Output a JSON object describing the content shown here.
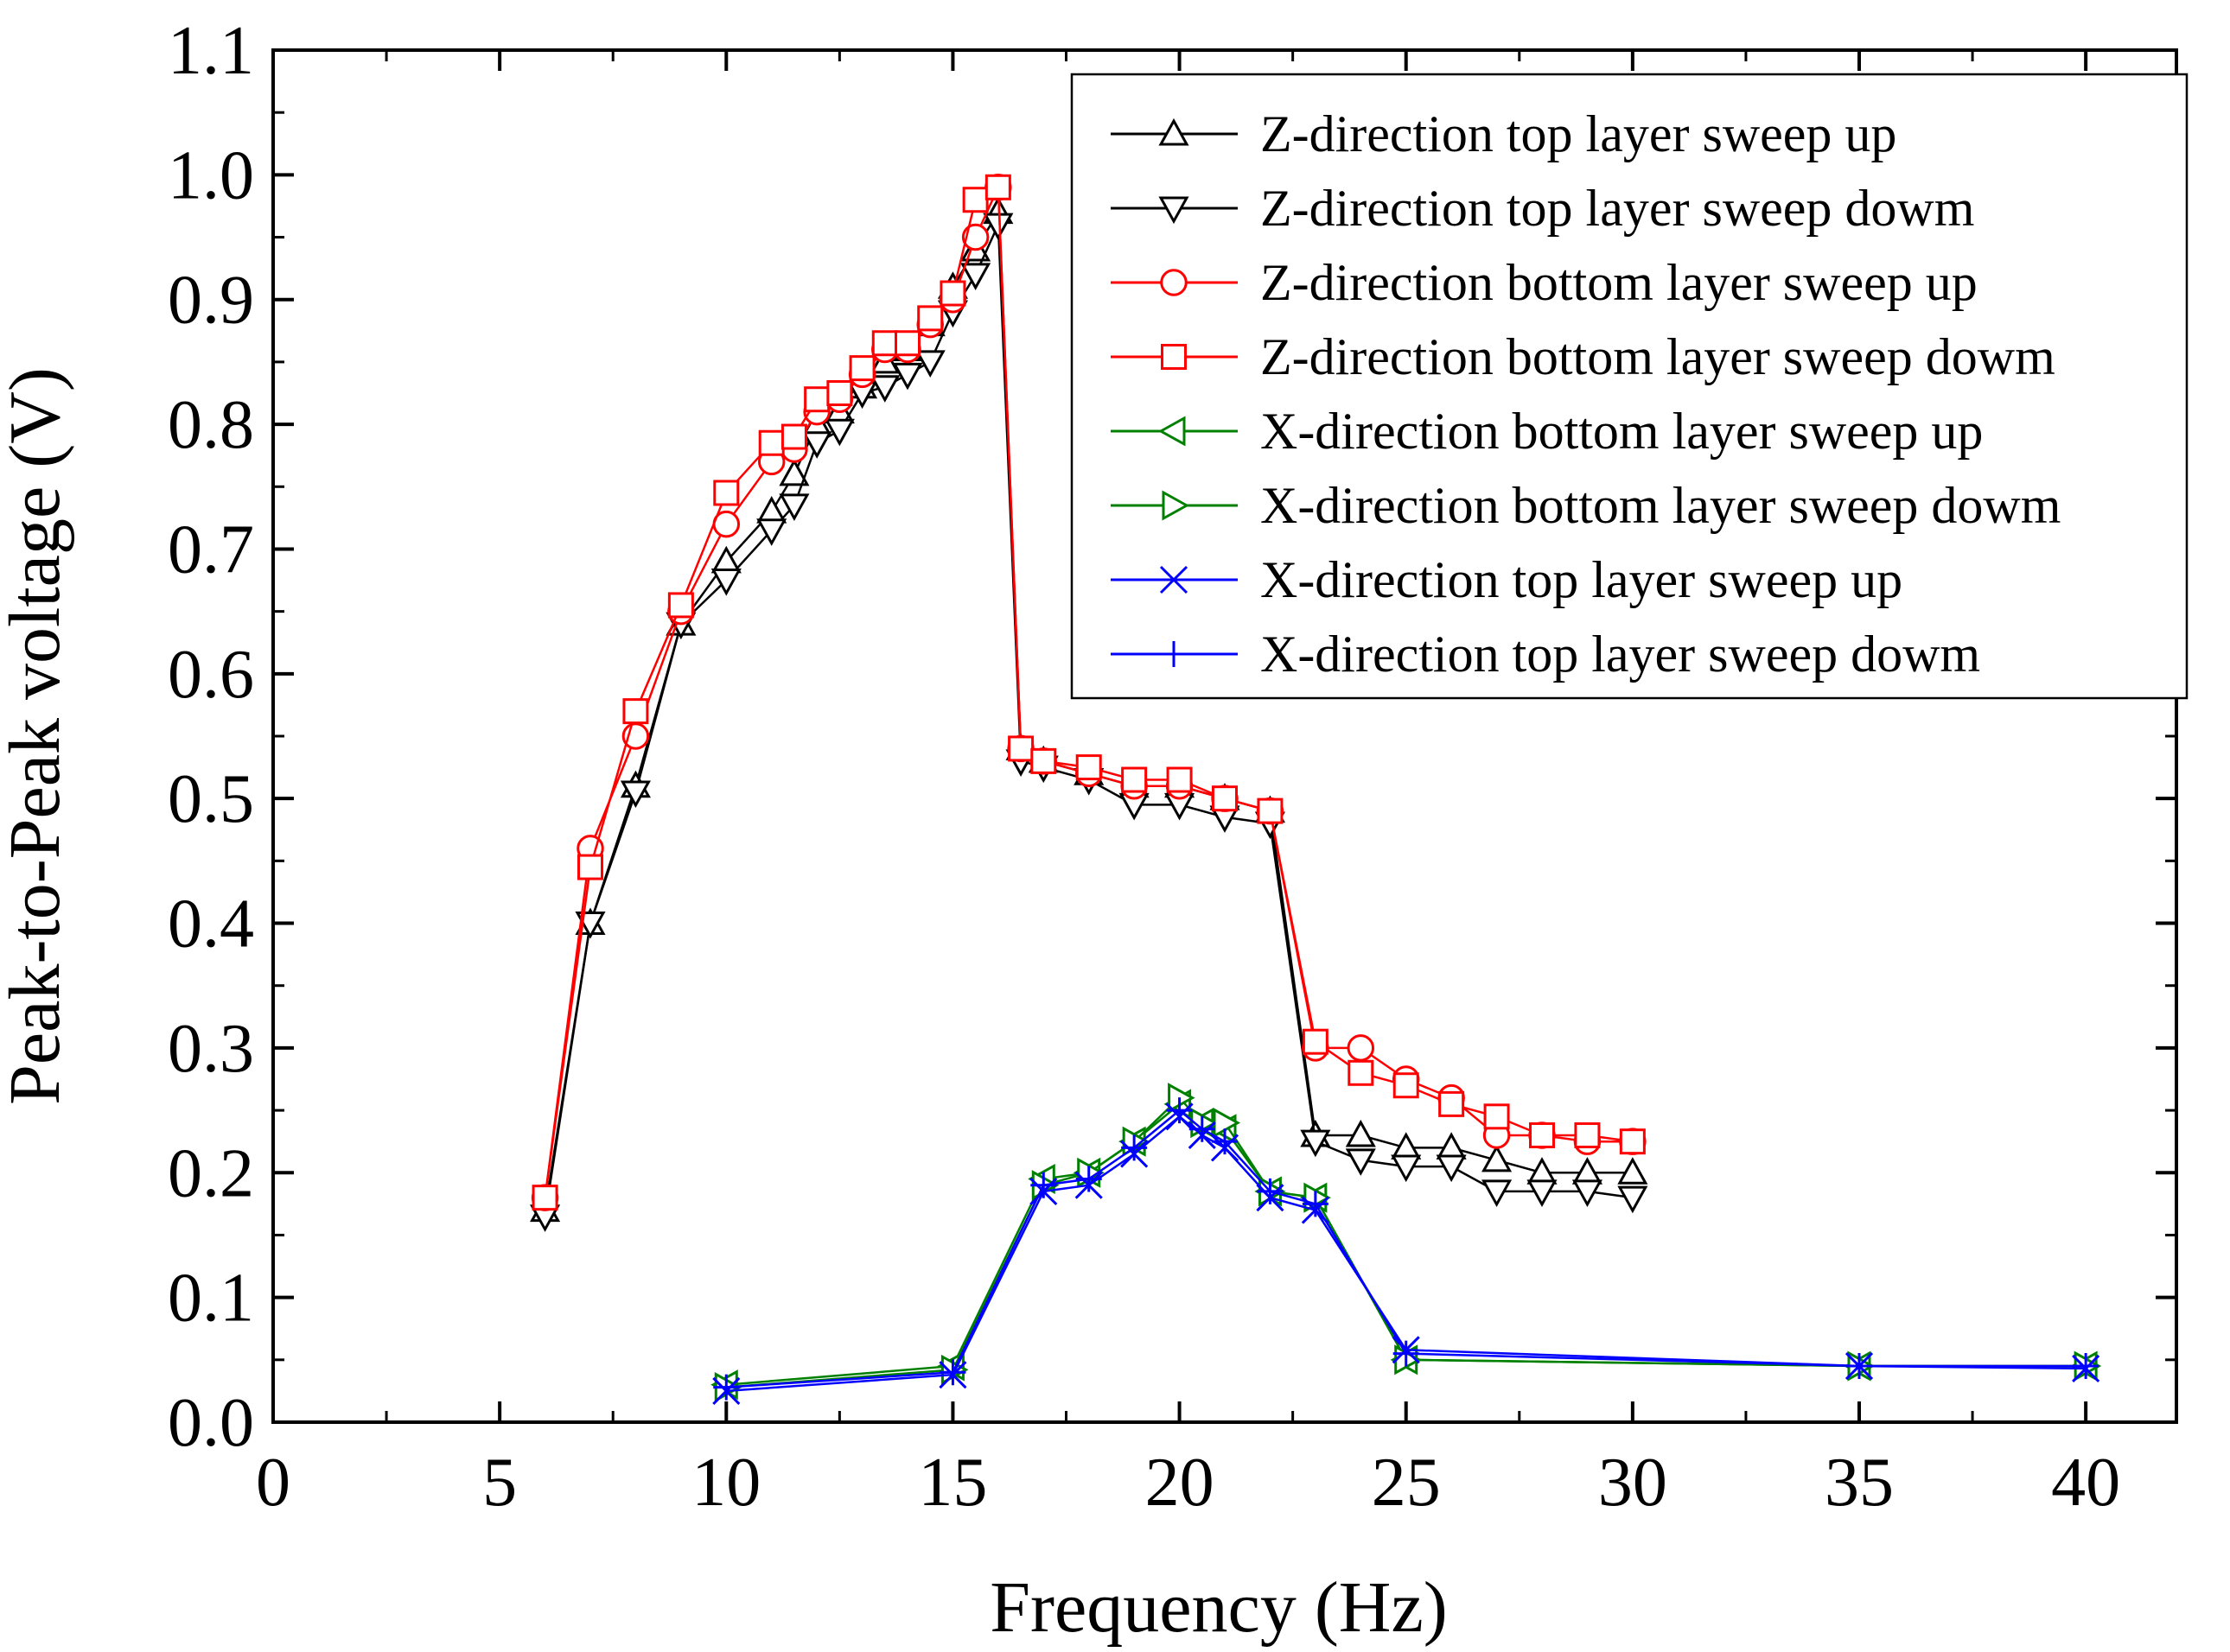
{
  "chart_data": {
    "type": "line",
    "xlabel": "Frequency (Hz)",
    "ylabel": "Peak-to-Peak voltage (V)",
    "xlim": [
      0,
      42
    ],
    "ylim": [
      0,
      1.1
    ],
    "xticks": [
      0,
      5,
      10,
      15,
      20,
      25,
      30,
      35,
      40
    ],
    "xtick_labels": [
      "0",
      "5",
      "10",
      "15",
      "20",
      "25",
      "30",
      "35",
      "40"
    ],
    "yticks": [
      0.0,
      0.1,
      0.2,
      0.3,
      0.4,
      0.5,
      0.6,
      0.7,
      0.8,
      0.9,
      1.0,
      1.1
    ],
    "ytick_labels": [
      "0.0",
      "0.1",
      "0.2",
      "0.3",
      "0.4",
      "0.5",
      "0.6",
      "0.7",
      "0.8",
      "0.9",
      "1.0",
      "1.1"
    ],
    "grid": false,
    "legend_position": "top-right",
    "series": [
      {
        "name": "Z-direction top layer sweep up",
        "color": "#000000",
        "marker": "triangle-up",
        "x": [
          6,
          7,
          8,
          9,
          10,
          11,
          11.5,
          12,
          12.5,
          13,
          13.5,
          14,
          14.5,
          15,
          15.5,
          16,
          16.5,
          17,
          18,
          19,
          20,
          21,
          22,
          23,
          24,
          25,
          26,
          27,
          28,
          29,
          30
        ],
        "y": [
          0.17,
          0.4,
          0.51,
          0.64,
          0.69,
          0.73,
          0.76,
          0.8,
          0.81,
          0.83,
          0.85,
          0.86,
          0.88,
          0.91,
          0.94,
          0.97,
          0.54,
          0.53,
          0.52,
          0.51,
          0.51,
          0.5,
          0.49,
          0.23,
          0.23,
          0.22,
          0.22,
          0.21,
          0.2,
          0.2,
          0.2
        ]
      },
      {
        "name": "Z-direction top layer sweep dowm",
        "color": "#000000",
        "marker": "triangle-down",
        "x": [
          6,
          7,
          8,
          9,
          10,
          11,
          11.5,
          12,
          12.5,
          13,
          13.5,
          14,
          14.5,
          15,
          15.5,
          16,
          16.5,
          17,
          18,
          19,
          20,
          21,
          22,
          23,
          24,
          25,
          26,
          27,
          28,
          29,
          30
        ],
        "y": [
          0.165,
          0.4,
          0.505,
          0.64,
          0.675,
          0.715,
          0.735,
          0.785,
          0.795,
          0.825,
          0.83,
          0.84,
          0.85,
          0.89,
          0.92,
          0.96,
          0.53,
          0.525,
          0.515,
          0.495,
          0.495,
          0.485,
          0.48,
          0.225,
          0.21,
          0.205,
          0.205,
          0.185,
          0.185,
          0.185,
          0.18
        ]
      },
      {
        "name": "Z-direction bottom layer sweep up",
        "color": "#ff0000",
        "marker": "circle",
        "x": [
          6,
          7,
          8,
          9,
          10,
          11,
          11.5,
          12,
          12.5,
          13,
          13.5,
          14,
          14.5,
          15,
          15.5,
          16,
          16.5,
          17,
          18,
          19,
          20,
          21,
          22,
          23,
          24,
          25,
          26,
          27,
          28,
          29,
          30
        ],
        "y": [
          0.18,
          0.46,
          0.55,
          0.65,
          0.72,
          0.77,
          0.78,
          0.81,
          0.82,
          0.84,
          0.86,
          0.86,
          0.88,
          0.9,
          0.95,
          0.99,
          0.54,
          0.53,
          0.52,
          0.51,
          0.51,
          0.5,
          0.49,
          0.3,
          0.3,
          0.275,
          0.26,
          0.23,
          0.23,
          0.225,
          0.225
        ]
      },
      {
        "name": "Z-direction bottom layer sweep dowm",
        "color": "#ff0000",
        "marker": "square",
        "x": [
          6,
          7,
          8,
          9,
          10,
          11,
          11.5,
          12,
          12.5,
          13,
          13.5,
          14,
          14.5,
          15,
          15.5,
          16,
          16.5,
          17,
          18,
          19,
          20,
          21,
          22,
          23,
          24,
          25,
          26,
          27,
          28,
          29,
          30
        ],
        "y": [
          0.18,
          0.445,
          0.57,
          0.655,
          0.745,
          0.785,
          0.79,
          0.82,
          0.825,
          0.845,
          0.865,
          0.865,
          0.885,
          0.905,
          0.98,
          0.99,
          0.54,
          0.53,
          0.525,
          0.515,
          0.515,
          0.5,
          0.49,
          0.305,
          0.28,
          0.27,
          0.255,
          0.245,
          0.23,
          0.23,
          0.225
        ]
      },
      {
        "name": "X-direction bottom layer sweep up",
        "color": "#008000",
        "marker": "triangle-left",
        "x": [
          10,
          15,
          17,
          18,
          19,
          20,
          20.5,
          21,
          22,
          23,
          25,
          35,
          40
        ],
        "y": [
          0.03,
          0.045,
          0.195,
          0.2,
          0.225,
          0.255,
          0.24,
          0.235,
          0.185,
          0.18,
          0.05,
          0.045,
          0.045
        ]
      },
      {
        "name": "X-direction bottom layer sweep dowm",
        "color": "#008000",
        "marker": "triangle-right",
        "x": [
          10,
          15,
          17,
          18,
          19,
          20,
          20.5,
          21,
          22,
          23,
          25,
          35,
          40
        ],
        "y": [
          0.028,
          0.042,
          0.19,
          0.2,
          0.225,
          0.26,
          0.24,
          0.24,
          0.185,
          0.18,
          0.05,
          0.045,
          0.045
        ]
      },
      {
        "name": "X-direction top layer sweep up",
        "color": "#0000ff",
        "marker": "x",
        "x": [
          10,
          15,
          17,
          18,
          19,
          20,
          20.5,
          21,
          22,
          23,
          25,
          35,
          40
        ],
        "y": [
          0.025,
          0.038,
          0.185,
          0.19,
          0.215,
          0.245,
          0.23,
          0.22,
          0.18,
          0.17,
          0.058,
          0.045,
          0.043
        ]
      },
      {
        "name": "X-direction top layer sweep dowm",
        "color": "#0000ff",
        "marker": "plus",
        "x": [
          10,
          15,
          17,
          18,
          19,
          20,
          20.5,
          21,
          22,
          23,
          25,
          35,
          40
        ],
        "y": [
          0.028,
          0.04,
          0.19,
          0.195,
          0.22,
          0.25,
          0.235,
          0.225,
          0.185,
          0.175,
          0.055,
          0.045,
          0.045
        ]
      }
    ]
  }
}
